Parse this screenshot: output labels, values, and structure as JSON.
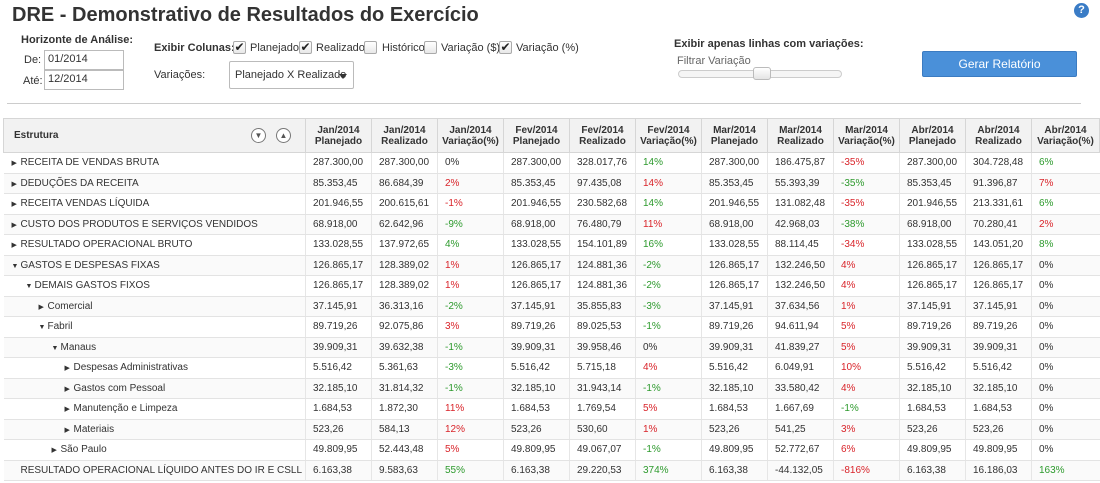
{
  "title": "DRE - Demonstrativo de Resultados do Exercício",
  "help_icon": "?",
  "horizonte": {
    "label": "Horizonte de Análise:",
    "de_label": "De:",
    "de_value": "01/2014",
    "ate_label": "Até:",
    "ate_value": "12/2014"
  },
  "colunas": {
    "label": "Exibir Colunas:",
    "options": [
      {
        "label": "Planejado",
        "checked": true
      },
      {
        "label": "Realizado",
        "checked": true
      },
      {
        "label": "Histórico",
        "checked": false
      },
      {
        "label": "Variação ($)",
        "checked": false
      },
      {
        "label": "Variação (%)",
        "checked": true
      }
    ]
  },
  "variacoes": {
    "label": "Variações:",
    "selected": "Planejado X Realizado"
  },
  "filtro": {
    "label": "Exibir apenas linhas com variações:",
    "slider_label": "Filtrar Variação"
  },
  "gerar_button": "Gerar Relatório",
  "table": {
    "structure_header": "Estrutura",
    "headers": [
      [
        "Jan/2014",
        "Planejado"
      ],
      [
        "Jan/2014",
        "Realizado"
      ],
      [
        "Jan/2014",
        "Variação(%)"
      ],
      [
        "Fev/2014",
        "Planejado"
      ],
      [
        "Fev/2014",
        "Realizado"
      ],
      [
        "Fev/2014",
        "Variação(%)"
      ],
      [
        "Mar/2014",
        "Planejado"
      ],
      [
        "Mar/2014",
        "Realizado"
      ],
      [
        "Mar/2014",
        "Variação(%)"
      ],
      [
        "Abr/2014",
        "Planejado"
      ],
      [
        "Abr/2014",
        "Realizado"
      ],
      [
        "Abr/2014",
        "Variação(%)"
      ]
    ],
    "rows": [
      {
        "name": "RECEITA DE VENDAS BRUTA",
        "level": 0,
        "toggle": "collapsed",
        "cells": [
          "287.300,00",
          "287.300,00",
          "0%",
          "287.300,00",
          "328.017,76",
          "14%",
          "287.300,00",
          "186.475,87",
          "-35%",
          "287.300,00",
          "304.728,48",
          "6%"
        ],
        "vclass": [
          "neu",
          "pos",
          "neg",
          "pos"
        ]
      },
      {
        "name": "DEDUÇÕES DA RECEITA",
        "level": 0,
        "toggle": "collapsed",
        "cells": [
          "85.353,45",
          "86.684,39",
          "2%",
          "85.353,45",
          "97.435,08",
          "14%",
          "85.353,45",
          "55.393,39",
          "-35%",
          "85.353,45",
          "91.396,87",
          "7%"
        ],
        "vclass": [
          "neg",
          "neg",
          "pos",
          "neg"
        ]
      },
      {
        "name": "RECEITA VENDAS LÍQUIDA",
        "level": 0,
        "toggle": "collapsed",
        "cells": [
          "201.946,55",
          "200.615,61",
          "-1%",
          "201.946,55",
          "230.582,68",
          "14%",
          "201.946,55",
          "131.082,48",
          "-35%",
          "201.946,55",
          "213.331,61",
          "6%"
        ],
        "vclass": [
          "neg",
          "pos",
          "neg",
          "pos"
        ]
      },
      {
        "name": "CUSTO DOS PRODUTOS E SERVIÇOS VENDIDOS",
        "level": 0,
        "toggle": "collapsed",
        "cells": [
          "68.918,00",
          "62.642,96",
          "-9%",
          "68.918,00",
          "76.480,79",
          "11%",
          "68.918,00",
          "42.968,03",
          "-38%",
          "68.918,00",
          "70.280,41",
          "2%"
        ],
        "vclass": [
          "pos",
          "neg",
          "pos",
          "neg"
        ]
      },
      {
        "name": "RESULTADO OPERACIONAL BRUTO",
        "level": 0,
        "toggle": "collapsed",
        "cells": [
          "133.028,55",
          "137.972,65",
          "4%",
          "133.028,55",
          "154.101,89",
          "16%",
          "133.028,55",
          "88.114,45",
          "-34%",
          "133.028,55",
          "143.051,20",
          "8%"
        ],
        "vclass": [
          "pos",
          "pos",
          "neg",
          "pos"
        ]
      },
      {
        "name": "GASTOS E DESPESAS FIXAS",
        "level": 0,
        "toggle": "expanded",
        "cells": [
          "126.865,17",
          "128.389,02",
          "1%",
          "126.865,17",
          "124.881,36",
          "-2%",
          "126.865,17",
          "132.246,50",
          "4%",
          "126.865,17",
          "126.865,17",
          "0%"
        ],
        "vclass": [
          "neg",
          "pos",
          "neg",
          "neu"
        ]
      },
      {
        "name": "DEMAIS GASTOS FIXOS",
        "level": 1,
        "toggle": "expanded",
        "cells": [
          "126.865,17",
          "128.389,02",
          "1%",
          "126.865,17",
          "124.881,36",
          "-2%",
          "126.865,17",
          "132.246,50",
          "4%",
          "126.865,17",
          "126.865,17",
          "0%"
        ],
        "vclass": [
          "neg",
          "pos",
          "neg",
          "neu"
        ]
      },
      {
        "name": "Comercial",
        "level": 2,
        "toggle": "collapsed",
        "cells": [
          "37.145,91",
          "36.313,16",
          "-2%",
          "37.145,91",
          "35.855,83",
          "-3%",
          "37.145,91",
          "37.634,56",
          "1%",
          "37.145,91",
          "37.145,91",
          "0%"
        ],
        "vclass": [
          "pos",
          "pos",
          "neg",
          "neu"
        ]
      },
      {
        "name": "Fabril",
        "level": 2,
        "toggle": "expanded",
        "cells": [
          "89.719,26",
          "92.075,86",
          "3%",
          "89.719,26",
          "89.025,53",
          "-1%",
          "89.719,26",
          "94.611,94",
          "5%",
          "89.719,26",
          "89.719,26",
          "0%"
        ],
        "vclass": [
          "neg",
          "pos",
          "neg",
          "neu"
        ]
      },
      {
        "name": "Manaus",
        "level": 3,
        "toggle": "expanded",
        "cells": [
          "39.909,31",
          "39.632,38",
          "-1%",
          "39.909,31",
          "39.958,46",
          "0%",
          "39.909,31",
          "41.839,27",
          "5%",
          "39.909,31",
          "39.909,31",
          "0%"
        ],
        "vclass": [
          "pos",
          "neu",
          "neg",
          "neu"
        ]
      },
      {
        "name": "Despesas Administrativas",
        "level": 4,
        "toggle": "collapsed",
        "cells": [
          "5.516,42",
          "5.361,63",
          "-3%",
          "5.516,42",
          "5.715,18",
          "4%",
          "5.516,42",
          "6.049,91",
          "10%",
          "5.516,42",
          "5.516,42",
          "0%"
        ],
        "vclass": [
          "pos",
          "neg",
          "neg",
          "neu"
        ]
      },
      {
        "name": "Gastos com Pessoal",
        "level": 4,
        "toggle": "collapsed",
        "cells": [
          "32.185,10",
          "31.814,32",
          "-1%",
          "32.185,10",
          "31.943,14",
          "-1%",
          "32.185,10",
          "33.580,42",
          "4%",
          "32.185,10",
          "32.185,10",
          "0%"
        ],
        "vclass": [
          "pos",
          "pos",
          "neg",
          "neu"
        ]
      },
      {
        "name": "Manutenção e Limpeza",
        "level": 4,
        "toggle": "collapsed",
        "cells": [
          "1.684,53",
          "1.872,30",
          "11%",
          "1.684,53",
          "1.769,54",
          "5%",
          "1.684,53",
          "1.667,69",
          "-1%",
          "1.684,53",
          "1.684,53",
          "0%"
        ],
        "vclass": [
          "neg",
          "neg",
          "pos",
          "neu"
        ]
      },
      {
        "name": "Materiais",
        "level": 4,
        "toggle": "collapsed",
        "cells": [
          "523,26",
          "584,13",
          "12%",
          "523,26",
          "530,60",
          "1%",
          "523,26",
          "541,25",
          "3%",
          "523,26",
          "523,26",
          "0%"
        ],
        "vclass": [
          "neg",
          "neg",
          "neg",
          "neu"
        ]
      },
      {
        "name": "São Paulo",
        "level": 3,
        "toggle": "collapsed",
        "cells": [
          "49.809,95",
          "52.443,48",
          "5%",
          "49.809,95",
          "49.067,07",
          "-1%",
          "49.809,95",
          "52.772,67",
          "6%",
          "49.809,95",
          "49.809,95",
          "0%"
        ],
        "vclass": [
          "neg",
          "pos",
          "neg",
          "neu"
        ]
      },
      {
        "name": "RESULTADO OPERACIONAL LÍQUIDO ANTES DO IR E CSLL",
        "level": 0,
        "toggle": "none",
        "cells": [
          "6.163,38",
          "9.583,63",
          "55%",
          "6.163,38",
          "29.220,53",
          "374%",
          "6.163,38",
          "-44.132,05",
          "-816%",
          "6.163,38",
          "16.186,03",
          "163%"
        ],
        "vclass": [
          "pos",
          "pos",
          "neg",
          "pos"
        ]
      }
    ]
  }
}
